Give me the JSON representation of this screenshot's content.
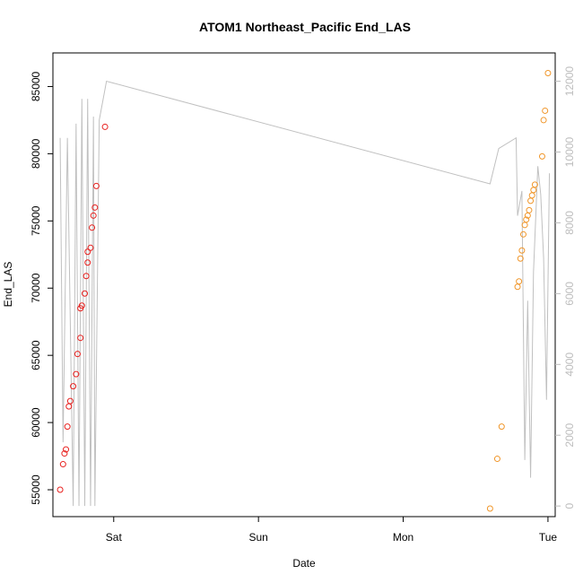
{
  "chart_data": {
    "type": "scatter",
    "title": "ATOM1 Northeast_Pacific End_LAS",
    "xlabel": "Date",
    "ylabel": "End_LAS",
    "x_ticks": [
      "Sat",
      "Sun",
      "Mon",
      "Tue"
    ],
    "x_unit": "days since Fri 00:00",
    "xlim": [
      0.58,
      4.05
    ],
    "ylim": [
      53000,
      87500
    ],
    "y_ticks": [
      55000,
      60000,
      65000,
      70000,
      75000,
      80000,
      85000
    ],
    "y2lim": [
      -300,
      12800
    ],
    "y2_ticks": [
      0,
      2000,
      4000,
      6000,
      8000,
      10000,
      12000
    ],
    "colors": {
      "series1": "#e8201e",
      "series2": "#f0962a",
      "line": "#c0c0c0",
      "axis_right": "#bdbdbd"
    },
    "series": [
      {
        "x": [
          0.63,
          0.65,
          0.66,
          0.67,
          0.68,
          0.69,
          0.7,
          0.72,
          0.74,
          0.75,
          0.77,
          0.77,
          0.78,
          0.8,
          0.81,
          0.82,
          0.82,
          0.84,
          0.85,
          0.86,
          0.87,
          0.88,
          0.94
        ],
        "y": [
          55000,
          56900,
          57700,
          58000,
          59700,
          61200,
          61600,
          62700,
          63600,
          65100,
          66300,
          68500,
          68700,
          69600,
          70900,
          71900,
          72700,
          73000,
          74500,
          75400,
          76000,
          77600,
          82000
        ]
      },
      {
        "x": [
          3.6,
          3.65,
          3.68,
          3.79,
          3.8,
          3.81,
          3.82,
          3.83,
          3.84,
          3.85,
          3.86,
          3.87,
          3.88,
          3.89,
          3.9,
          3.91,
          3.96,
          3.97,
          3.98,
          4.0
        ],
        "y": [
          53600,
          57300,
          59700,
          70100,
          70500,
          72200,
          72800,
          74000,
          74700,
          75100,
          75400,
          75800,
          76500,
          76900,
          77300,
          77700,
          79800,
          82500,
          83200,
          86000
        ]
      }
    ],
    "line_series": {
      "x": [
        0.63,
        0.65,
        0.68,
        0.72,
        0.74,
        0.76,
        0.78,
        0.8,
        0.82,
        0.84,
        0.86,
        0.87,
        0.9,
        0.95,
        3.6,
        3.66,
        3.78,
        3.79,
        3.82,
        3.84,
        3.86,
        3.88,
        3.9,
        3.93,
        3.95,
        3.97,
        3.99,
        4.01
      ],
      "y": [
        10400,
        1800,
        10400,
        0,
        10800,
        0,
        11500,
        0,
        11500,
        0,
        11000,
        0,
        10900,
        12000,
        9100,
        10100,
        10400,
        8200,
        8900,
        1300,
        5800,
        800,
        6600,
        9600,
        8800,
        7000,
        3000,
        9400
      ]
    }
  }
}
